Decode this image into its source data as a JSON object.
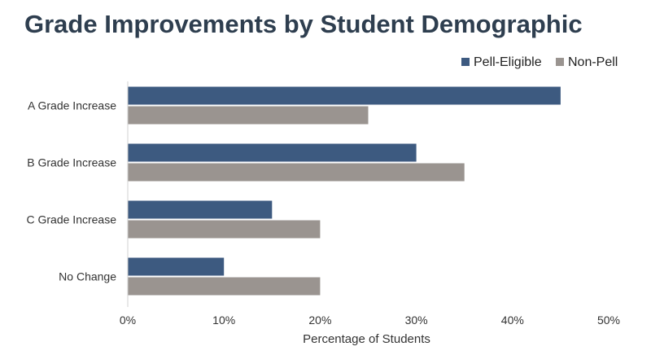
{
  "chart_data": {
    "type": "bar",
    "orientation": "horizontal",
    "title": "Grade Improvements by Student Demographic",
    "xlabel": "Percentage of Students",
    "ylabel": "",
    "xlim": [
      0,
      50
    ],
    "x_ticks": [
      "0%",
      "10%",
      "20%",
      "30%",
      "40%",
      "50%"
    ],
    "categories": [
      "A Grade Increase",
      "B Grade Increase",
      "C Grade Increase",
      "No Change"
    ],
    "series": [
      {
        "name": "Pell-Eligible",
        "color": "#3d5a80",
        "values": [
          45,
          30,
          15,
          10
        ]
      },
      {
        "name": "Non-Pell",
        "color": "#9a9490",
        "values": [
          25,
          35,
          20,
          20
        ]
      }
    ],
    "legend_position": "top-right",
    "grid": false
  }
}
